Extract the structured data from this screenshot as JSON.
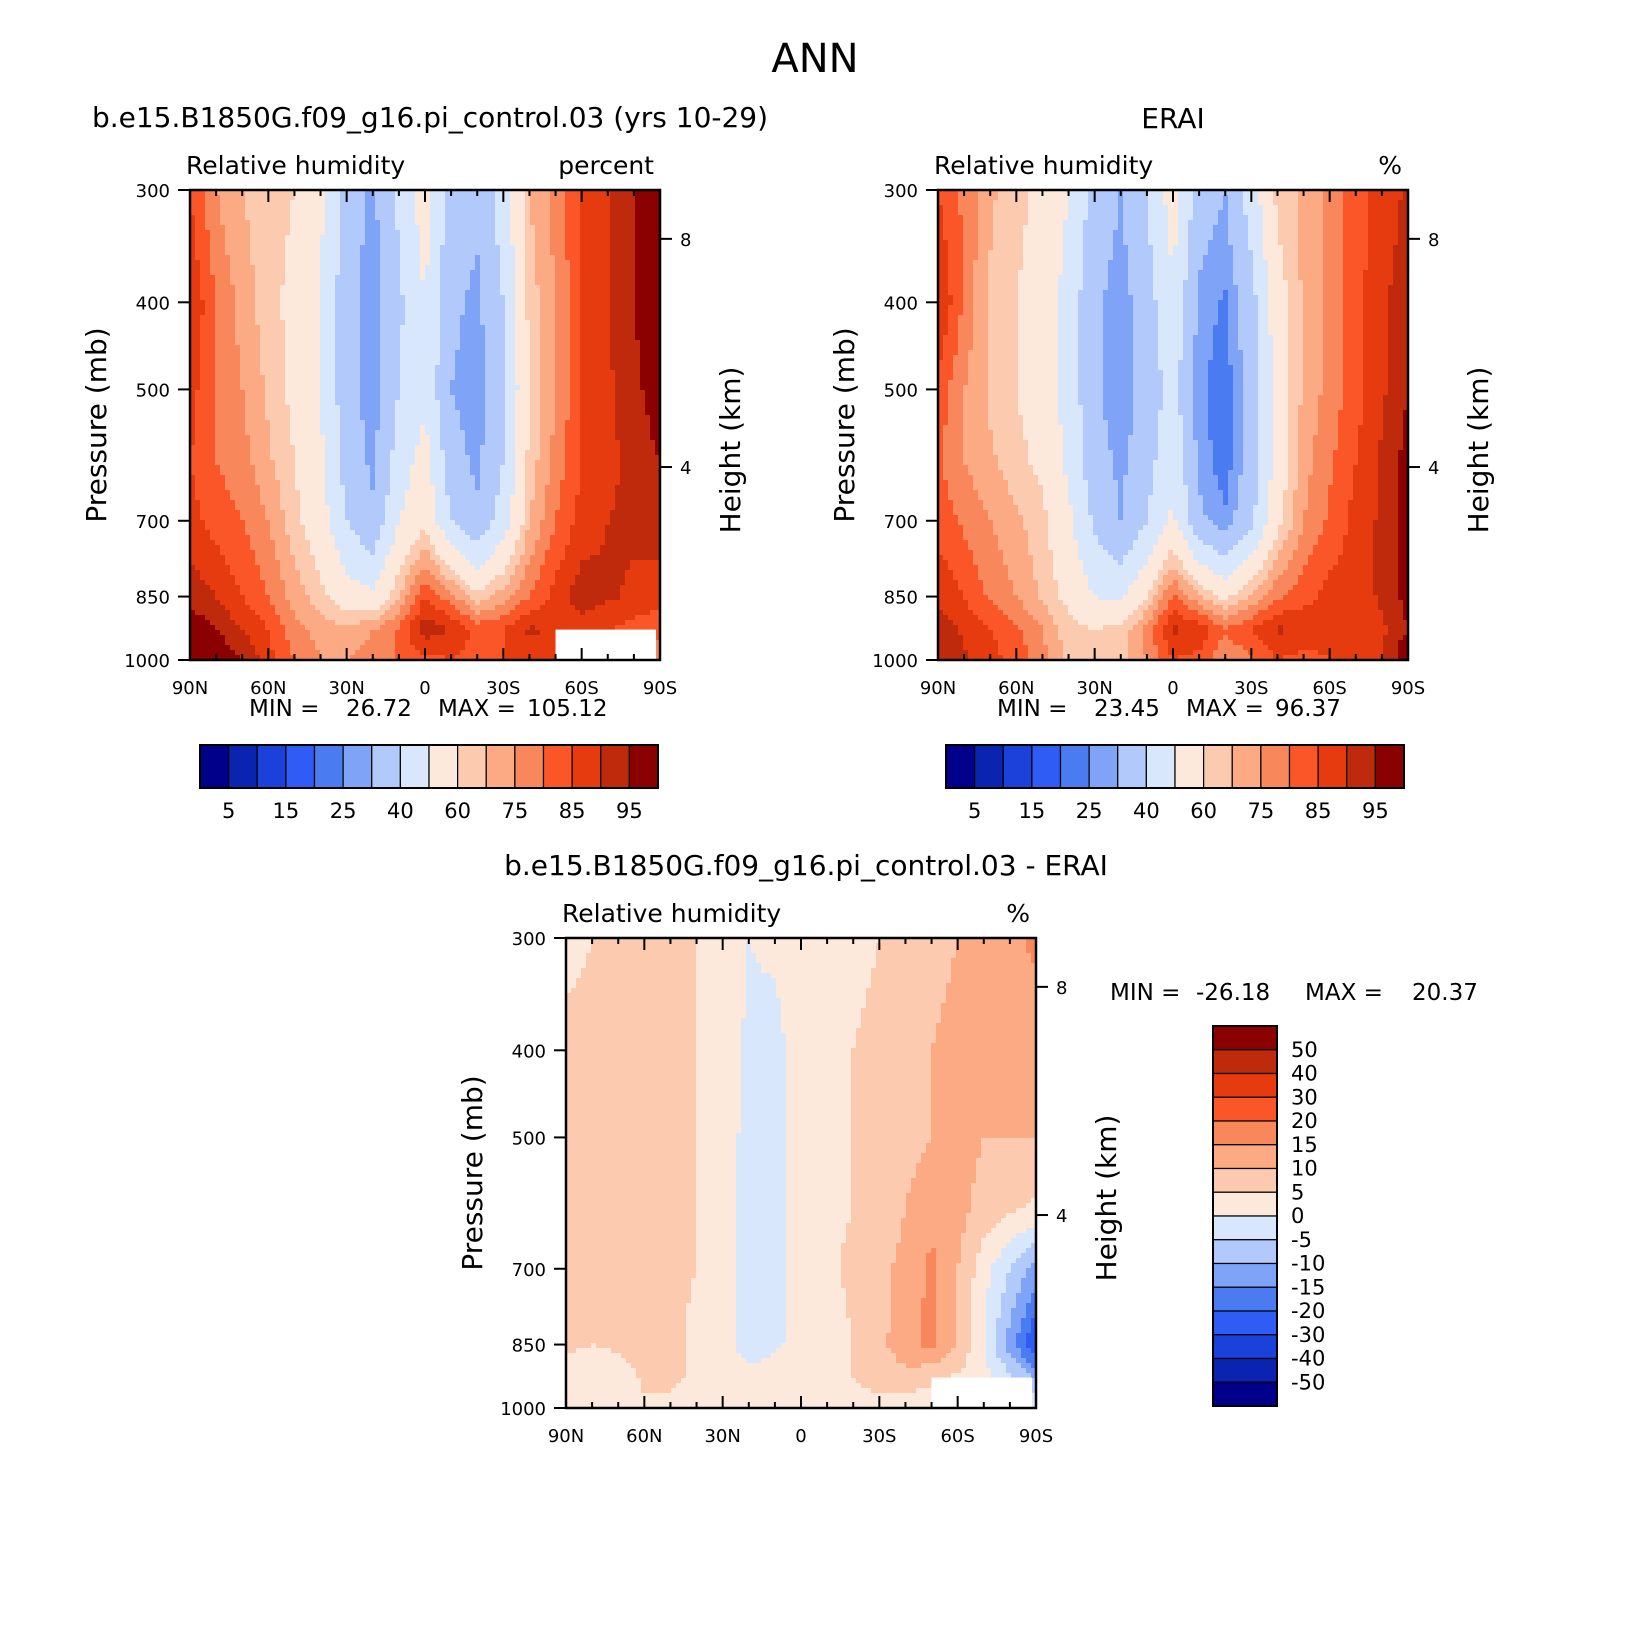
{
  "page": {
    "title": "ANN"
  },
  "colors": {
    "rh_palette": [
      "#00008b",
      "#0a23b0",
      "#1a41d9",
      "#2f5cf5",
      "#4a7bf0",
      "#7ea3f7",
      "#b2c9fb",
      "#d9e7fc",
      "#fde9dc",
      "#fccaaf",
      "#fbaa84",
      "#f8875c",
      "#fa5628",
      "#e63b0f",
      "#bf2a0c",
      "#8b0000"
    ],
    "diff_palette": [
      "#00008b",
      "#0a23b0",
      "#1a41d9",
      "#2f5cf5",
      "#4a7bf0",
      "#7ea3f7",
      "#b2c9fb",
      "#d9e7fc",
      "#fde9dc",
      "#fccaaf",
      "#fbaa84",
      "#f8875c",
      "#fa5628",
      "#e63b0f",
      "#bf2a0c",
      "#8b0000"
    ]
  },
  "chart_data": [
    {
      "type": "heatmap",
      "panel": "model",
      "title": "b.e15.B1850G.f09_g16.pi_control.03 (yrs 10-29)",
      "left_string": "Relative humidity",
      "right_string": "percent",
      "ylabel": "Pressure (mb)",
      "ylabel_right": "Height (km)",
      "x_ticks": [
        "90N",
        "60N",
        "30N",
        "0",
        "30S",
        "60S",
        "90S"
      ],
      "y_ticks": [
        "300",
        "400",
        "500",
        "700",
        "850",
        "1000"
      ],
      "y2_ticks": [
        "8",
        "4"
      ],
      "stats": {
        "min_label": "MIN =",
        "min": "26.72",
        "max_label": "MAX =",
        "max": "105.12"
      },
      "colorbar_labels": [
        "5",
        "15",
        "25",
        "40",
        "60",
        "75",
        "85",
        "95"
      ],
      "levels": [
        5,
        10,
        15,
        20,
        25,
        30,
        40,
        50,
        60,
        65,
        70,
        75,
        80,
        85,
        90,
        95
      ],
      "x": [
        -90,
        -80,
        -70,
        -60,
        -50,
        -40,
        -30,
        -20,
        -10,
        0,
        10,
        20,
        30,
        40,
        50,
        60,
        70,
        80,
        90
      ],
      "p": [
        300,
        400,
        500,
        600,
        700,
        850,
        925,
        1000
      ],
      "z": [
        [
          80,
          70,
          65,
          62,
          60,
          52,
          35,
          28,
          42,
          55,
          35,
          32,
          45,
          65,
          72,
          80,
          85,
          90,
          98
        ],
        [
          85,
          75,
          68,
          62,
          58,
          50,
          34,
          26,
          38,
          50,
          32,
          28,
          40,
          62,
          70,
          80,
          85,
          90,
          96
        ],
        [
          82,
          75,
          70,
          64,
          58,
          50,
          34,
          26,
          40,
          48,
          30,
          26,
          38,
          60,
          70,
          80,
          84,
          88,
          94
        ],
        [
          80,
          75,
          72,
          66,
          60,
          52,
          36,
          28,
          45,
          54,
          34,
          28,
          40,
          62,
          72,
          80,
          84,
          86,
          90
        ],
        [
          82,
          78,
          75,
          70,
          62,
          55,
          40,
          32,
          50,
          58,
          40,
          32,
          45,
          65,
          75,
          82,
          85,
          86,
          88
        ],
        [
          88,
          85,
          80,
          75,
          68,
          62,
          55,
          52,
          65,
          80,
          72,
          62,
          68,
          75,
          82,
          88,
          86,
          84,
          82
        ],
        [
          94,
          90,
          85,
          80,
          72,
          68,
          66,
          70,
          76,
          88,
          85,
          78,
          80,
          86,
          84,
          82,
          80,
          78,
          76
        ],
        [
          100,
          95,
          90,
          82,
          75,
          70,
          70,
          72,
          76,
          78,
          80,
          78,
          80,
          82,
          80,
          78,
          76,
          74,
          72
        ]
      ],
      "missing_region": {
        "x": [
          50,
          90
        ],
        "p": [
          925,
          1000
        ]
      }
    },
    {
      "type": "heatmap",
      "panel": "obs",
      "title": "ERAI",
      "left_string": "Relative humidity",
      "right_string": "%",
      "ylabel": "Pressure (mb)",
      "ylabel_right": "Height (km)",
      "x_ticks": [
        "90N",
        "60N",
        "30N",
        "0",
        "30S",
        "60S",
        "90S"
      ],
      "y_ticks": [
        "300",
        "400",
        "500",
        "700",
        "850",
        "1000"
      ],
      "y2_ticks": [
        "8",
        "4"
      ],
      "stats": {
        "min_label": "MIN =",
        "min": "23.45",
        "max_label": "MAX =",
        "max": "96.37"
      },
      "colorbar_labels": [
        "5",
        "15",
        "25",
        "40",
        "60",
        "75",
        "85",
        "95"
      ],
      "levels": [
        5,
        10,
        15,
        20,
        25,
        30,
        40,
        50,
        60,
        65,
        70,
        75,
        80,
        85,
        90,
        95
      ],
      "x": [
        -90,
        -80,
        -70,
        -60,
        -50,
        -40,
        -30,
        -20,
        -10,
        0,
        10,
        20,
        30,
        40,
        50,
        60,
        70,
        80,
        90
      ],
      "p": [
        300,
        400,
        500,
        600,
        700,
        850,
        925,
        1000
      ],
      "z": [
        [
          80,
          74,
          66,
          62,
          58,
          50,
          36,
          30,
          40,
          55,
          35,
          30,
          45,
          62,
          66,
          72,
          78,
          82,
          86
        ],
        [
          86,
          74,
          64,
          60,
          56,
          46,
          32,
          26,
          36,
          48,
          28,
          24,
          36,
          56,
          66,
          72,
          78,
          84,
          88
        ],
        [
          78,
          70,
          64,
          60,
          56,
          46,
          32,
          25,
          34,
          44,
          26,
          22,
          34,
          54,
          66,
          72,
          78,
          84,
          90
        ],
        [
          76,
          70,
          66,
          62,
          58,
          48,
          34,
          28,
          36,
          48,
          28,
          22,
          34,
          54,
          68,
          74,
          80,
          86,
          92
        ],
        [
          78,
          74,
          70,
          66,
          62,
          52,
          38,
          30,
          40,
          52,
          32,
          26,
          38,
          58,
          70,
          76,
          82,
          86,
          92
        ],
        [
          84,
          80,
          74,
          70,
          64,
          58,
          50,
          48,
          60,
          76,
          66,
          58,
          66,
          74,
          78,
          82,
          82,
          86,
          92
        ],
        [
          88,
          84,
          80,
          76,
          70,
          62,
          60,
          62,
          72,
          86,
          84,
          76,
          80,
          86,
          84,
          82,
          80,
          84,
          90
        ],
        [
          90,
          86,
          82,
          78,
          72,
          64,
          62,
          62,
          70,
          80,
          78,
          70,
          74,
          80,
          78,
          80,
          80,
          84,
          96
        ]
      ]
    },
    {
      "type": "heatmap",
      "panel": "difference",
      "title": "b.e15.B1850G.f09_g16.pi_control.03 - ERAI",
      "left_string": "Relative humidity",
      "right_string": "%",
      "ylabel": "Pressure (mb)",
      "ylabel_right": "Height (km)",
      "x_ticks": [
        "90N",
        "60N",
        "30N",
        "0",
        "30S",
        "60S",
        "90S"
      ],
      "y_ticks": [
        "300",
        "400",
        "500",
        "700",
        "850",
        "1000"
      ],
      "y2_ticks": [
        "8",
        "4"
      ],
      "stats": {
        "min_label": "MIN =",
        "min": "-26.18",
        "max_label": "MAX =",
        "max": "20.37"
      },
      "colorbar_labels": [
        "50",
        "40",
        "30",
        "20",
        "15",
        "10",
        "5",
        "0",
        "-5",
        "-10",
        "-15",
        "-20",
        "-30",
        "-40",
        "-50"
      ],
      "levels": [
        -50,
        -40,
        -30,
        -20,
        -15,
        -10,
        -5,
        0,
        5,
        10,
        15,
        20,
        30,
        40,
        50
      ],
      "x": [
        -90,
        -80,
        -70,
        -60,
        -50,
        -40,
        -30,
        -20,
        -10,
        0,
        10,
        20,
        30,
        40,
        50,
        60,
        70,
        80,
        90
      ],
      "p": [
        300,
        400,
        500,
        600,
        700,
        850,
        925,
        1000
      ],
      "z": [
        [
          4,
          5,
          6,
          6,
          6,
          5,
          2,
          0,
          1,
          3,
          3,
          4,
          5,
          6,
          8,
          10,
          12,
          14,
          16
        ],
        [
          6,
          6,
          6,
          6,
          6,
          5,
          3,
          -1,
          -2,
          3,
          4,
          5,
          6,
          7,
          10,
          12,
          10,
          12,
          12
        ],
        [
          6,
          6,
          6,
          6,
          6,
          5,
          3,
          -2,
          -3,
          3,
          4,
          5,
          6,
          8,
          10,
          12,
          10,
          10,
          10
        ],
        [
          6,
          6,
          6,
          6,
          6,
          5,
          3,
          -3,
          -3,
          3,
          4,
          5,
          6,
          10,
          14,
          12,
          8,
          6,
          4
        ],
        [
          6,
          6,
          6,
          6,
          6,
          5,
          3,
          -3,
          -2,
          3,
          4,
          6,
          8,
          12,
          16,
          10,
          2,
          -5,
          -12
        ],
        [
          6,
          5,
          6,
          8,
          6,
          4,
          3,
          -3,
          -1,
          2,
          3,
          5,
          8,
          14,
          16,
          10,
          0,
          -12,
          -26
        ],
        [
          3,
          1,
          2,
          6,
          6,
          4,
          3,
          2,
          3,
          2,
          4,
          5,
          6,
          8,
          6,
          4,
          2,
          -4,
          -10
        ],
        [
          2,
          3,
          2,
          4,
          4,
          3,
          2,
          4,
          2,
          2,
          2,
          4,
          4,
          2,
          2,
          0,
          0,
          0,
          0
        ]
      ],
      "missing_region": {
        "x": [
          50,
          90
        ],
        "p": [
          925,
          1000
        ]
      }
    }
  ]
}
